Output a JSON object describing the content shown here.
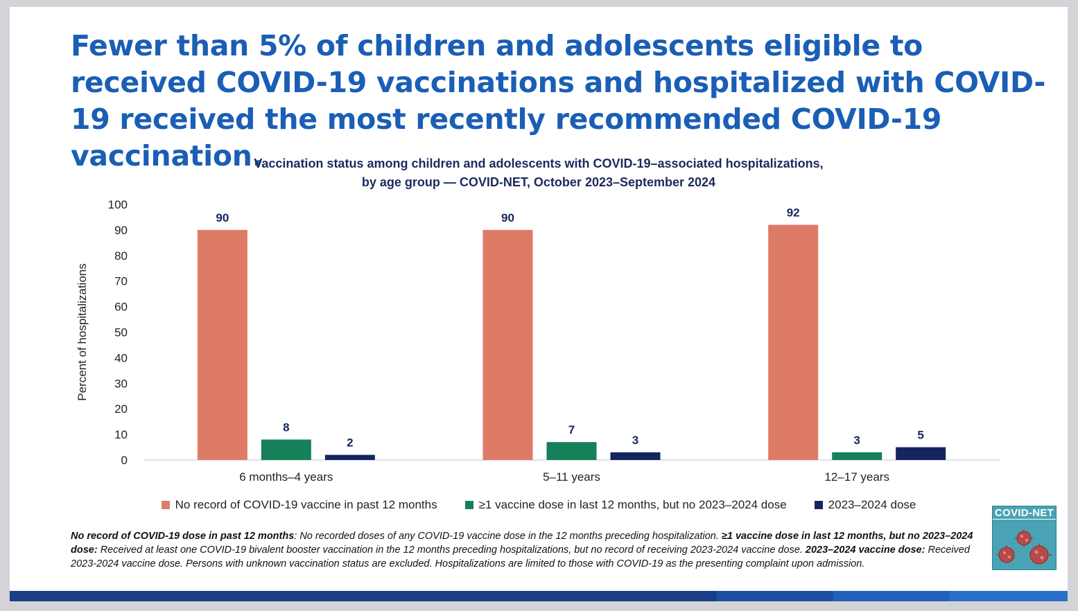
{
  "headline": "Fewer than 5% of children and adolescents eligible to received COVID-19 vaccinations and hospitalized with COVID-19 received the most recently recommended COVID-19 vaccination.",
  "chart_data": {
    "type": "bar",
    "title_lines": [
      "Vaccination status among children and adolescents with COVID-19–associated hospitalizations,",
      "by age group — COVID-NET, October 2023–September 2024"
    ],
    "ylabel": "Percent of hospitalizations",
    "xlabel": "",
    "ylim": [
      0,
      100
    ],
    "yticks": [
      0,
      10,
      20,
      30,
      40,
      50,
      60,
      70,
      80,
      90,
      100
    ],
    "grid": false,
    "legend_position": "bottom",
    "categories": [
      "6 months–4 years",
      "5–11 years",
      "12–17 years"
    ],
    "series": [
      {
        "name": "No record of COVID-19 vaccine in past 12 months",
        "color": "#de7b66",
        "values": [
          90,
          90,
          92
        ]
      },
      {
        "name": "≥1 vaccine dose in last 12 months, but no 2023–2024 dose",
        "color": "#168058",
        "values": [
          8,
          7,
          3
        ]
      },
      {
        "name": "2023–2024 dose",
        "color": "#14255e",
        "values": [
          2,
          3,
          5
        ]
      }
    ]
  },
  "footnote": {
    "t1_bold": "No record of COVID-19 dose in past 12 months",
    "t1": ": No recorded doses of any COVID-19 vaccine dose in the 12 months preceding hospitalization. ",
    "t2_bold": "≥1 vaccine dose in last 12 months, but no 2023–2024 dose:",
    "t2": " Received at least one COVID-19 bivalent booster vaccination in the 12 months preceding hospitalizations, but no record of receiving 2023-2024 vaccine dose.",
    "t3_bold": "2023–2024 vaccine dose:",
    "t3": " Received 2023-2024 vaccine dose. Persons with unknown vaccination status are excluded. Hospitalizations are limited to those with COVID-19 as the presenting complaint upon admission."
  },
  "logo": {
    "text": "COVID-NET"
  },
  "colors": {
    "headline": "#1a5eb5",
    "chart_title": "#1b2a5e",
    "band": [
      "#1a3f86",
      "#1d4fa0",
      "#2160b8",
      "#2a70c8"
    ]
  }
}
